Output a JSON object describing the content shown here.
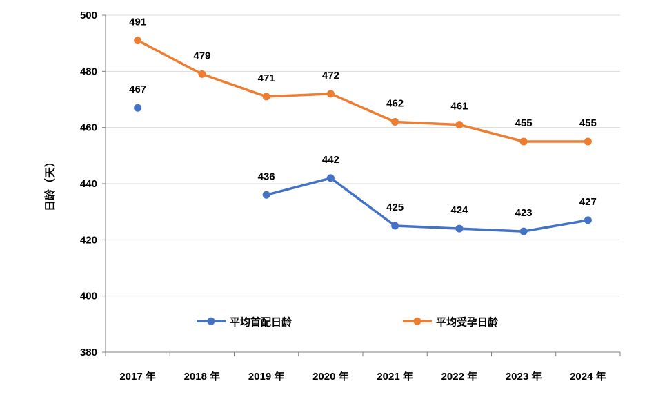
{
  "chart_data": {
    "type": "line",
    "title": "",
    "xlabel": "",
    "ylabel": "日龄（天）",
    "categories": [
      "2017 年",
      "2018 年",
      "2019 年",
      "2020 年",
      "2021 年",
      "2022 年",
      "2023 年",
      "2024 年"
    ],
    "ylim": [
      380,
      500
    ],
    "yticks": [
      380,
      400,
      420,
      440,
      460,
      480,
      500
    ],
    "grid": true,
    "legend_position": "inside-bottom",
    "series": [
      {
        "name": "平均首配日龄",
        "color": "#4472C4",
        "values": [
          467,
          null,
          436,
          442,
          425,
          424,
          423,
          427
        ]
      },
      {
        "name": "平均受孕日龄",
        "color": "#ED7D31",
        "values": [
          491,
          479,
          471,
          472,
          462,
          461,
          455,
          455
        ]
      }
    ]
  }
}
